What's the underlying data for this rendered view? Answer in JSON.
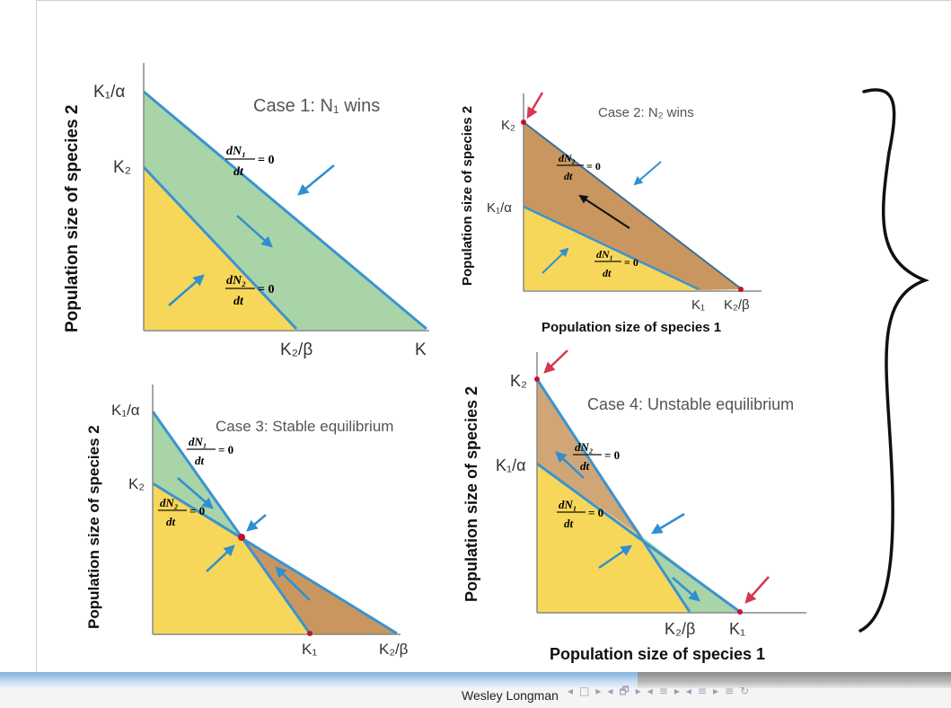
{
  "footer": {
    "credit": "Wesley Longman",
    "nav_controls": [
      "◂",
      "□",
      "▸",
      "◂",
      "🗗",
      "▸",
      "◂",
      "≡",
      "▸",
      "◂",
      "≡",
      "▸",
      "≡",
      "↻"
    ]
  },
  "labels": {
    "k1_over_alpha": "K₁/α",
    "k2": "K₂",
    "k1": "K₁",
    "k2_over_beta": "K₂/β",
    "dN1": "dN₁",
    "dN2": "dN₂",
    "dt": "dt",
    "eq_zero": "= 0",
    "y_axis": "Population size of species 2",
    "x_axis": "Population size of species 1",
    "cut_k": "K"
  },
  "cases": {
    "case1": "Case 1: N₁ wins",
    "case2": "Case 2: N₂ wins",
    "case3": "Case 3: Stable equilibrium",
    "case4": "Case 4: Unstable equilibrium"
  },
  "colors": {
    "yellow": "#f6d75a",
    "green": "#a9d4a8",
    "brown": "#c9965f",
    "line_blue": "#3a93d1",
    "arrow_blue": "#2f8fd2",
    "arrow_red": "#d6384f",
    "dot_red": "#c8102e"
  }
}
